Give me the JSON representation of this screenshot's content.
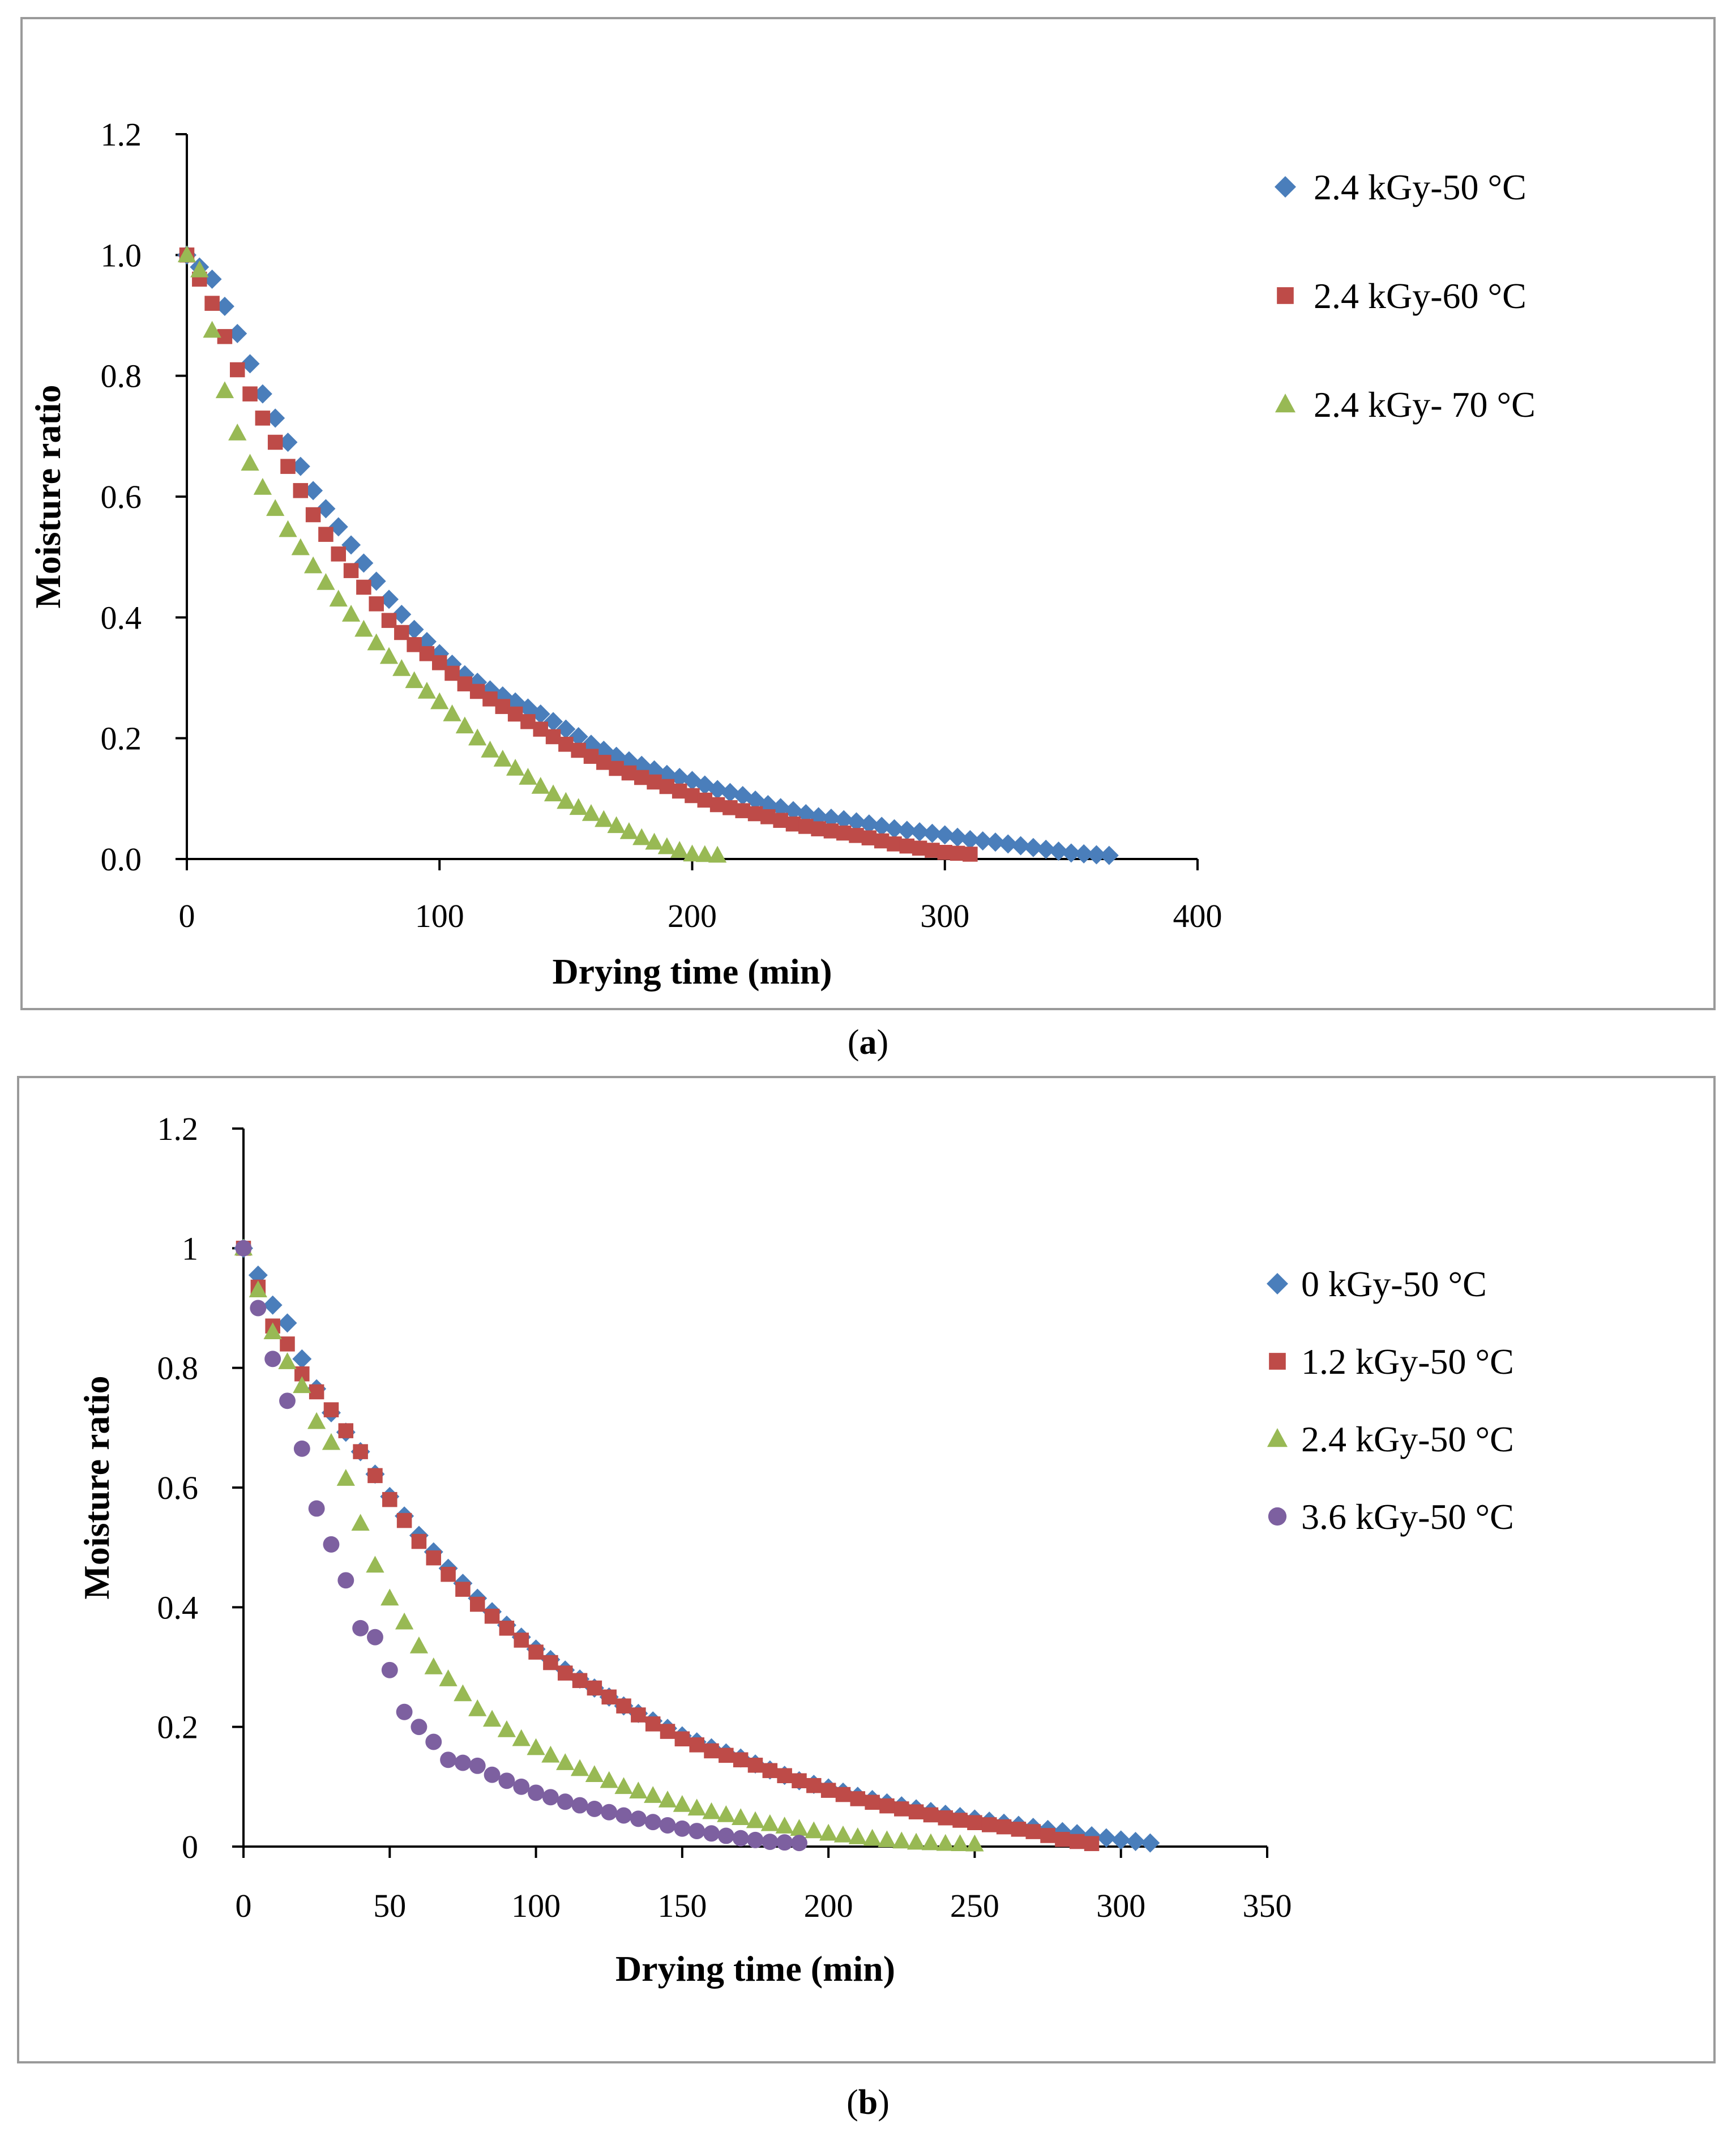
{
  "charts": [
    {
      "type": "scatter",
      "caption_letter": "a",
      "xlabel": "Drying time (min)",
      "ylabel": "Moisture ratio",
      "xlim": [
        0,
        400
      ],
      "ylim": [
        0,
        1.2
      ],
      "xticks": [
        "0",
        "100",
        "200",
        "300",
        "400"
      ],
      "yticks": [
        "0.0",
        "0.2",
        "0.4",
        "0.6",
        "0.8",
        "1.0",
        "1.2"
      ],
      "legend_position": "right",
      "series": [
        {
          "name": "2.4 kGy-50 °C",
          "marker": "diamond",
          "color": "#4a7ebb",
          "x_step": 5,
          "x_max": 365,
          "curve": [
            [
              0,
              1.0
            ],
            [
              10,
              0.96
            ],
            [
              20,
              0.87
            ],
            [
              30,
              0.77
            ],
            [
              40,
              0.69
            ],
            [
              50,
              0.61
            ],
            [
              60,
              0.55
            ],
            [
              70,
              0.49
            ],
            [
              80,
              0.43
            ],
            [
              90,
              0.38
            ],
            [
              100,
              0.34
            ],
            [
              110,
              0.305
            ],
            [
              120,
              0.28
            ],
            [
              130,
              0.26
            ],
            [
              140,
              0.24
            ],
            [
              150,
              0.215
            ],
            [
              160,
              0.19
            ],
            [
              170,
              0.17
            ],
            [
              180,
              0.155
            ],
            [
              190,
              0.14
            ],
            [
              200,
              0.13
            ],
            [
              210,
              0.115
            ],
            [
              220,
              0.105
            ],
            [
              230,
              0.09
            ],
            [
              240,
              0.08
            ],
            [
              250,
              0.07
            ],
            [
              260,
              0.065
            ],
            [
              270,
              0.058
            ],
            [
              280,
              0.05
            ],
            [
              290,
              0.045
            ],
            [
              300,
              0.04
            ],
            [
              310,
              0.032
            ],
            [
              320,
              0.028
            ],
            [
              330,
              0.022
            ],
            [
              340,
              0.016
            ],
            [
              350,
              0.01
            ],
            [
              360,
              0.007
            ],
            [
              365,
              0.006
            ]
          ]
        },
        {
          "name": "2.4 kGy-60 °C",
          "marker": "square",
          "color": "#be4b48",
          "x_step": 5,
          "x_max": 310,
          "curve": [
            [
              0,
              1.0
            ],
            [
              10,
              0.92
            ],
            [
              20,
              0.81
            ],
            [
              25,
              0.77
            ],
            [
              30,
              0.73
            ],
            [
              40,
              0.65
            ],
            [
              50,
              0.57
            ],
            [
              60,
              0.505
            ],
            [
              70,
              0.45
            ],
            [
              80,
              0.395
            ],
            [
              90,
              0.355
            ],
            [
              100,
              0.325
            ],
            [
              110,
              0.29
            ],
            [
              120,
              0.265
            ],
            [
              130,
              0.24
            ],
            [
              140,
              0.215
            ],
            [
              150,
              0.19
            ],
            [
              160,
              0.17
            ],
            [
              170,
              0.15
            ],
            [
              180,
              0.135
            ],
            [
              190,
              0.12
            ],
            [
              200,
              0.105
            ],
            [
              210,
              0.09
            ],
            [
              220,
              0.08
            ],
            [
              230,
              0.07
            ],
            [
              240,
              0.058
            ],
            [
              250,
              0.05
            ],
            [
              260,
              0.043
            ],
            [
              270,
              0.035
            ],
            [
              280,
              0.025
            ],
            [
              290,
              0.018
            ],
            [
              300,
              0.011
            ],
            [
              310,
              0.008
            ]
          ]
        },
        {
          "name": "2.4 kGy- 70 °C",
          "marker": "triangle",
          "color": "#98b954",
          "x_step": 5,
          "x_max": 210,
          "curve": [
            [
              0,
              1.0
            ],
            [
              5,
              0.975
            ],
            [
              10,
              0.875
            ],
            [
              15,
              0.775
            ],
            [
              20,
              0.705
            ],
            [
              25,
              0.655
            ],
            [
              30,
              0.615
            ],
            [
              40,
              0.545
            ],
            [
              50,
              0.485
            ],
            [
              60,
              0.43
            ],
            [
              70,
              0.38
            ],
            [
              80,
              0.335
            ],
            [
              90,
              0.295
            ],
            [
              100,
              0.26
            ],
            [
              110,
              0.22
            ],
            [
              120,
              0.18
            ],
            [
              130,
              0.15
            ],
            [
              140,
              0.12
            ],
            [
              150,
              0.095
            ],
            [
              160,
              0.075
            ],
            [
              170,
              0.055
            ],
            [
              180,
              0.035
            ],
            [
              190,
              0.02
            ],
            [
              200,
              0.008
            ],
            [
              210,
              0.006
            ]
          ]
        }
      ]
    },
    {
      "type": "scatter",
      "caption_letter": "b",
      "xlabel": "Drying time (min)",
      "ylabel": "Moisture ratio",
      "xlim": [
        0,
        350
      ],
      "ylim": [
        0,
        1.2
      ],
      "xticks": [
        "0",
        "50",
        "100",
        "150",
        "200",
        "250",
        "300",
        "350"
      ],
      "yticks": [
        "0",
        "0.2",
        "0.4",
        "0.6",
        "0.8",
        "1",
        "1.2"
      ],
      "legend_position": "right",
      "series": [
        {
          "name": "0 kGy-50 °C",
          "marker": "diamond",
          "color": "#4a7ebb",
          "x_step": 5,
          "x_max": 310,
          "curve": [
            [
              0,
              1.0
            ],
            [
              5,
              0.955
            ],
            [
              10,
              0.905
            ],
            [
              15,
              0.875
            ],
            [
              20,
              0.815
            ],
            [
              25,
              0.765
            ],
            [
              30,
              0.725
            ],
            [
              40,
              0.66
            ],
            [
              50,
              0.585
            ],
            [
              60,
              0.52
            ],
            [
              70,
              0.465
            ],
            [
              80,
              0.415
            ],
            [
              90,
              0.37
            ],
            [
              100,
              0.33
            ],
            [
              110,
              0.295
            ],
            [
              120,
              0.265
            ],
            [
              130,
              0.235
            ],
            [
              140,
              0.21
            ],
            [
              150,
              0.185
            ],
            [
              160,
              0.165
            ],
            [
              170,
              0.148
            ],
            [
              180,
              0.128
            ],
            [
              190,
              0.11
            ],
            [
              200,
              0.098
            ],
            [
              210,
              0.084
            ],
            [
              220,
              0.073
            ],
            [
              230,
              0.063
            ],
            [
              240,
              0.054
            ],
            [
              250,
              0.046
            ],
            [
              260,
              0.039
            ],
            [
              270,
              0.032
            ],
            [
              280,
              0.025
            ],
            [
              290,
              0.018
            ],
            [
              300,
              0.011
            ],
            [
              310,
              0.006
            ]
          ]
        },
        {
          "name": "1.2 kGy-50 °C",
          "marker": "square",
          "color": "#be4b48",
          "x_step": 5,
          "x_max": 290,
          "curve": [
            [
              0,
              1.0
            ],
            [
              5,
              0.935
            ],
            [
              10,
              0.87
            ],
            [
              15,
              0.84
            ],
            [
              20,
              0.79
            ],
            [
              30,
              0.73
            ],
            [
              40,
              0.66
            ],
            [
              50,
              0.58
            ],
            [
              60,
              0.51
            ],
            [
              70,
              0.455
            ],
            [
              80,
              0.405
            ],
            [
              90,
              0.365
            ],
            [
              100,
              0.325
            ],
            [
              110,
              0.29
            ],
            [
              120,
              0.265
            ],
            [
              130,
              0.235
            ],
            [
              140,
              0.205
            ],
            [
              150,
              0.18
            ],
            [
              160,
              0.16
            ],
            [
              170,
              0.145
            ],
            [
              180,
              0.127
            ],
            [
              190,
              0.11
            ],
            [
              200,
              0.094
            ],
            [
              210,
              0.08
            ],
            [
              220,
              0.068
            ],
            [
              230,
              0.058
            ],
            [
              240,
              0.048
            ],
            [
              250,
              0.04
            ],
            [
              260,
              0.033
            ],
            [
              270,
              0.025
            ],
            [
              280,
              0.012
            ],
            [
              290,
              0.005
            ]
          ]
        },
        {
          "name": "2.4 kGy-50 °C",
          "marker": "triangle",
          "color": "#98b954",
          "x_step": 5,
          "x_max": 250,
          "curve": [
            [
              0,
              1.0
            ],
            [
              5,
              0.93
            ],
            [
              10,
              0.86
            ],
            [
              15,
              0.81
            ],
            [
              20,
              0.77
            ],
            [
              25,
              0.71
            ],
            [
              30,
              0.675
            ],
            [
              35,
              0.615
            ],
            [
              40,
              0.54
            ],
            [
              45,
              0.47
            ],
            [
              50,
              0.415
            ],
            [
              55,
              0.375
            ],
            [
              60,
              0.335
            ],
            [
              65,
              0.3
            ],
            [
              70,
              0.28
            ],
            [
              80,
              0.23
            ],
            [
              90,
              0.195
            ],
            [
              100,
              0.165
            ],
            [
              110,
              0.14
            ],
            [
              120,
              0.12
            ],
            [
              130,
              0.1
            ],
            [
              140,
              0.085
            ],
            [
              150,
              0.07
            ],
            [
              160,
              0.058
            ],
            [
              170,
              0.048
            ],
            [
              180,
              0.038
            ],
            [
              190,
              0.03
            ],
            [
              200,
              0.022
            ],
            [
              210,
              0.016
            ],
            [
              220,
              0.011
            ],
            [
              230,
              0.007
            ],
            [
              240,
              0.005
            ],
            [
              250,
              0.004
            ]
          ]
        },
        {
          "name": "3.6 kGy-50 °C",
          "marker": "circle",
          "color": "#7d60a0",
          "x_step": 5,
          "x_max": 190,
          "curve": [
            [
              0,
              1.0
            ],
            [
              5,
              0.9
            ],
            [
              10,
              0.815
            ],
            [
              15,
              0.745
            ],
            [
              20,
              0.665
            ],
            [
              25,
              0.565
            ],
            [
              30,
              0.505
            ],
            [
              35,
              0.445
            ],
            [
              40,
              0.365
            ],
            [
              45,
              0.35
            ],
            [
              50,
              0.295
            ],
            [
              55,
              0.225
            ],
            [
              60,
              0.2
            ],
            [
              65,
              0.175
            ],
            [
              70,
              0.145
            ],
            [
              75,
              0.14
            ],
            [
              80,
              0.135
            ],
            [
              85,
              0.12
            ],
            [
              90,
              0.11
            ],
            [
              100,
              0.09
            ],
            [
              110,
              0.075
            ],
            [
              120,
              0.063
            ],
            [
              130,
              0.052
            ],
            [
              140,
              0.041
            ],
            [
              150,
              0.03
            ],
            [
              160,
              0.022
            ],
            [
              170,
              0.014
            ],
            [
              180,
              0.008
            ],
            [
              190,
              0.006
            ]
          ]
        }
      ]
    }
  ]
}
